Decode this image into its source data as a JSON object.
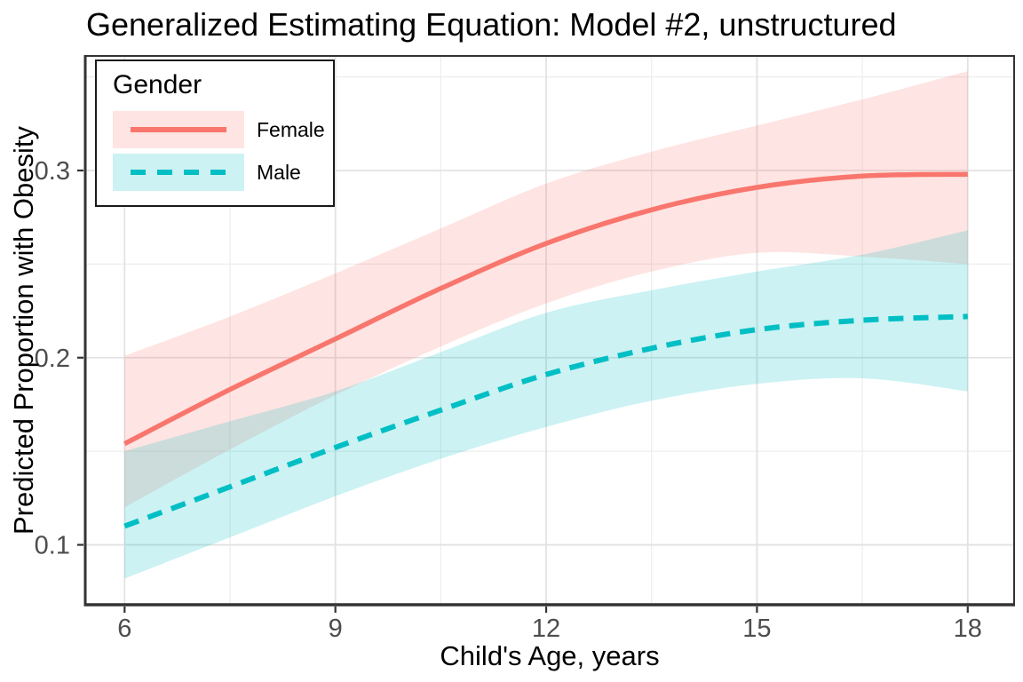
{
  "chart_data": {
    "type": "line",
    "title": "Generalized Estimating Equation: Model #2, unstructured",
    "xlabel": "Child's Age, years",
    "ylabel": "Predicted Proportion with Obesity",
    "x_ticks": [
      6,
      9,
      12,
      15,
      18
    ],
    "x_tick_labels": [
      "6",
      "9",
      "12",
      "15",
      "18"
    ],
    "y_ticks": [
      0.1,
      0.2,
      0.3
    ],
    "y_tick_labels": [
      "0.1",
      "0.2",
      "0.3"
    ],
    "x_minor": [
      7.5,
      10.5,
      13.5,
      16.5
    ],
    "y_minor": [
      0.15,
      0.25,
      0.35
    ],
    "xlim": [
      5.44,
      18.66
    ],
    "ylim": [
      0.068,
      0.3612
    ],
    "grid": true,
    "legend": {
      "title": "Gender",
      "position": "top-left-inside"
    },
    "x": [
      6,
      7.5,
      9,
      10.5,
      12,
      13.5,
      15,
      16.5,
      18
    ],
    "series": [
      {
        "name": "Female",
        "line_style": "solid",
        "color": "#F8766D",
        "fill": "rgba(248,118,109,0.2)",
        "values": [
          0.154,
          0.183,
          0.21,
          0.237,
          0.261,
          0.279,
          0.291,
          0.297,
          0.298
        ],
        "ci_upper": [
          0.201,
          0.222,
          0.245,
          0.269,
          0.293,
          0.31,
          0.324,
          0.338,
          0.353
        ],
        "ci_lower": [
          0.12,
          0.151,
          0.18,
          0.206,
          0.229,
          0.246,
          0.256,
          0.254,
          0.25
        ]
      },
      {
        "name": "Male",
        "line_style": "dashed",
        "color": "#00BFC4",
        "fill": "rgba(0,191,196,0.2)",
        "values": [
          0.11,
          0.131,
          0.152,
          0.172,
          0.191,
          0.205,
          0.215,
          0.22,
          0.222
        ],
        "ci_upper": [
          0.15,
          0.166,
          0.182,
          0.203,
          0.224,
          0.236,
          0.246,
          0.255,
          0.268
        ],
        "ci_lower": [
          0.082,
          0.104,
          0.126,
          0.146,
          0.163,
          0.177,
          0.186,
          0.189,
          0.182
        ]
      }
    ]
  },
  "colors": {
    "background": "#FFFFFF",
    "panel_background": "#FFFFFF",
    "grid_major": "#E2E2E2",
    "grid_minor": "#EDEDED",
    "panel_border": "#333333",
    "axis_line": "#333333",
    "tick_mark": "#333333",
    "axis_text": "#4D4D4D",
    "text": "#000000"
  }
}
